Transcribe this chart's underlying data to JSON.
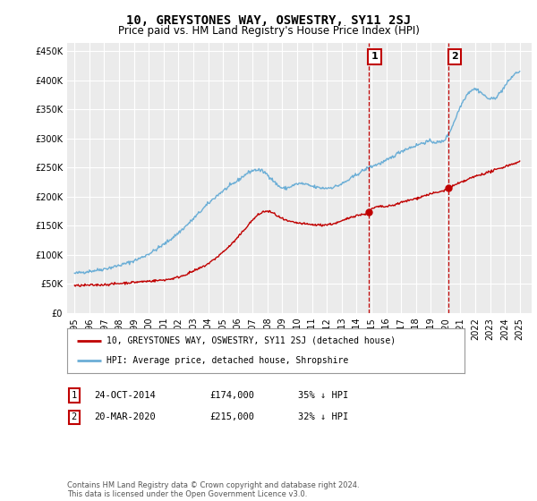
{
  "title": "10, GREYSTONES WAY, OSWESTRY, SY11 2SJ",
  "subtitle": "Price paid vs. HM Land Registry's House Price Index (HPI)",
  "ylabel_ticks": [
    0,
    50000,
    100000,
    150000,
    200000,
    250000,
    300000,
    350000,
    400000,
    450000
  ],
  "ylabel_labels": [
    "£0",
    "£50K",
    "£100K",
    "£150K",
    "£200K",
    "£250K",
    "£300K",
    "£350K",
    "£400K",
    "£450K"
  ],
  "ylim": [
    0,
    465000
  ],
  "xlim_start": 1994.5,
  "xlim_end": 2025.8,
  "hpi_color": "#6baed6",
  "price_color": "#c00000",
  "marker_color": "#c00000",
  "transaction1_x": 2014.82,
  "transaction1_y": 174000,
  "transaction2_x": 2020.22,
  "transaction2_y": 215000,
  "legend_label_red": "10, GREYSTONES WAY, OSWESTRY, SY11 2SJ (detached house)",
  "legend_label_blue": "HPI: Average price, detached house, Shropshire",
  "table_rows": [
    {
      "num": "1",
      "date": "24-OCT-2014",
      "price": "£174,000",
      "pct": "35% ↓ HPI"
    },
    {
      "num": "2",
      "date": "20-MAR-2020",
      "price": "£215,000",
      "pct": "32% ↓ HPI"
    }
  ],
  "footer": "Contains HM Land Registry data © Crown copyright and database right 2024.\nThis data is licensed under the Open Government Licence v3.0.",
  "bg_color": "#ffffff",
  "plot_bg_color": "#ebebeb",
  "grid_color": "#ffffff",
  "title_fontsize": 10,
  "subtitle_fontsize": 8.5,
  "tick_fontsize": 7,
  "legend_fontsize": 7,
  "footer_fontsize": 6
}
